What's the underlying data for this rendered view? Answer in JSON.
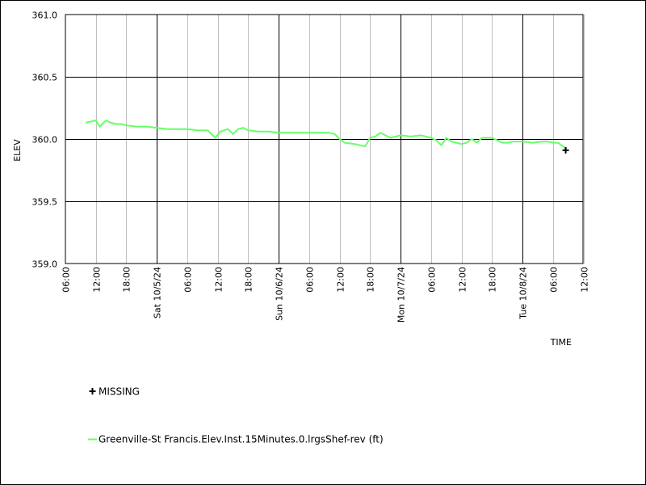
{
  "chart_data": {
    "type": "line",
    "xlabel": "TIME",
    "ylabel": "ELEV",
    "ylim": [
      359.0,
      361.0
    ],
    "yticks": [
      "359.0",
      "359.5",
      "360.0",
      "360.5",
      "361.0"
    ],
    "xlim_hours_note_free": true,
    "x_ticks": [
      {
        "label": "06:00",
        "major": false
      },
      {
        "label": "12:00",
        "major": false
      },
      {
        "label": "18:00",
        "major": false
      },
      {
        "label": "Sat 10/5/24",
        "major": true
      },
      {
        "label": "06:00",
        "major": false
      },
      {
        "label": "12:00",
        "major": false
      },
      {
        "label": "18:00",
        "major": false
      },
      {
        "label": "Sun 10/6/24",
        "major": true
      },
      {
        "label": "06:00",
        "major": false
      },
      {
        "label": "12:00",
        "major": false
      },
      {
        "label": "18:00",
        "major": false
      },
      {
        "label": "Mon 10/7/24",
        "major": true
      },
      {
        "label": "06:00",
        "major": false
      },
      {
        "label": "12:00",
        "major": false
      },
      {
        "label": "18:00",
        "major": false
      },
      {
        "label": "Tue 10/8/24",
        "major": true
      },
      {
        "label": "06:00",
        "major": false
      },
      {
        "label": "12:00",
        "major": false
      }
    ],
    "series": [
      {
        "name": "Greenville-St Francis.Elev.Inst.15Minutes.0.lrgsShef-rev (ft)",
        "color": "#66ff66",
        "x": [
          "10/4 10:00",
          "10/4 11:00",
          "10/4 12:00",
          "10/4 12:45",
          "10/4 13:30",
          "10/4 14:00",
          "10/4 15:00",
          "10/4 16:00",
          "10/4 17:00",
          "10/4 18:00",
          "10/4 20:00",
          "10/4 22:00",
          "10/5 00:00",
          "10/5 02:00",
          "10/5 04:00",
          "10/5 06:00",
          "10/5 08:00",
          "10/5 10:00",
          "10/5 11:30",
          "10/5 12:30",
          "10/5 14:00",
          "10/5 15:00",
          "10/5 16:00",
          "10/5 17:00",
          "10/5 18:00",
          "10/5 20:00",
          "10/5 22:00",
          "10/6 00:00",
          "10/6 04:00",
          "10/6 08:00",
          "10/6 10:00",
          "10/6 11:00",
          "10/6 12:00",
          "10/6 13:00",
          "10/6 15:00",
          "10/6 17:00",
          "10/6 18:00",
          "10/6 19:00",
          "10/6 20:00",
          "10/6 21:00",
          "10/6 22:00",
          "10/6 23:00",
          "10/7 00:00",
          "10/7 02:00",
          "10/7 04:00",
          "10/7 06:00",
          "10/7 07:00",
          "10/7 08:00",
          "10/7 09:00",
          "10/7 10:00",
          "10/7 11:00",
          "10/7 12:00",
          "10/7 13:00",
          "10/7 14:00",
          "10/7 15:00",
          "10/7 16:00",
          "10/7 17:00",
          "10/7 18:00",
          "10/7 19:00",
          "10/7 20:00",
          "10/7 21:00",
          "10/7 22:00",
          "10/8 00:00",
          "10/8 02:00",
          "10/8 04:00",
          "10/8 05:00",
          "10/8 06:00",
          "10/8 07:00",
          "10/8 08:00",
          "10/8 08:30"
        ],
        "values": [
          360.13,
          360.14,
          360.15,
          360.1,
          360.13,
          360.15,
          360.13,
          360.12,
          360.12,
          360.11,
          360.1,
          360.1,
          360.09,
          360.08,
          360.08,
          360.08,
          360.07,
          360.07,
          360.01,
          360.06,
          360.08,
          360.04,
          360.08,
          360.09,
          360.07,
          360.06,
          360.06,
          360.05,
          360.05,
          360.05,
          360.05,
          360.04,
          360.0,
          359.97,
          359.96,
          359.94,
          360.01,
          360.02,
          360.05,
          360.03,
          360.01,
          360.02,
          360.03,
          360.02,
          360.03,
          360.01,
          359.99,
          359.95,
          360.01,
          359.98,
          359.97,
          359.96,
          359.97,
          360.0,
          359.97,
          360.01,
          360.01,
          360.01,
          359.99,
          359.97,
          359.97,
          359.98,
          359.98,
          359.97,
          359.98,
          359.98,
          359.97,
          359.97,
          359.94,
          359.92
        ]
      }
    ],
    "missing_points": [
      {
        "x": "10/8 08:30",
        "y": 359.91
      }
    ],
    "legend": {
      "missing_label": "MISSING",
      "series_label": "Greenville-St Francis.Elev.Inst.15Minutes.0.lrgsShef-rev (ft)"
    },
    "grid": true
  }
}
